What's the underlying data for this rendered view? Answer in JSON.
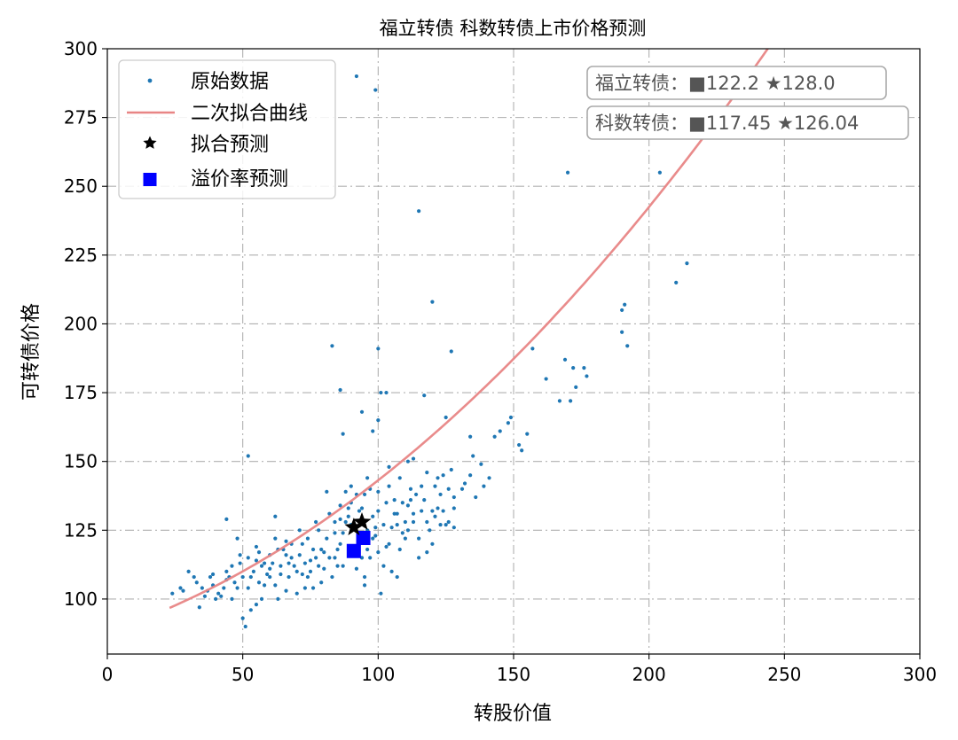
{
  "chart_data": {
    "type": "scatter",
    "title": "福立转债  科数转债上市价格预测",
    "xlabel": "转股价值",
    "ylabel": "可转债价格",
    "xlim": [
      0,
      300
    ],
    "ylim": [
      80,
      300
    ],
    "xticks": [
      0,
      50,
      100,
      150,
      200,
      250,
      300
    ],
    "yticks": [
      100,
      125,
      150,
      175,
      200,
      225,
      250,
      275,
      300
    ],
    "grid": true,
    "legend_position": "top-left",
    "legend": [
      {
        "label": "原始数据",
        "marker": "dot",
        "color": "#1f77b4"
      },
      {
        "label": "二次拟合曲线",
        "marker": "line",
        "color": "#e88585"
      },
      {
        "label": "拟合预测",
        "marker": "star",
        "color": "#000000"
      },
      {
        "label": "溢价率预测",
        "marker": "square",
        "color": "#0000ff"
      }
    ],
    "fit_curve": {
      "a": 0.00221,
      "b": 0.3305,
      "c": 88.0,
      "x_range": [
        23,
        278
      ],
      "color": "#e88585"
    },
    "fit_prediction": [
      [
        91.0,
        126.04
      ],
      [
        94.0,
        128.0
      ]
    ],
    "premium_prediction": [
      [
        91.0,
        117.45
      ],
      [
        94.5,
        122.2
      ]
    ],
    "annotations": [
      {
        "label": "福立转债：",
        "square_value": "■122.2",
        "star_value": "★128.0"
      },
      {
        "label": "科数转债：",
        "square_value": "■117.45",
        "star_value": "★126.04"
      }
    ],
    "raw_points": [
      [
        92,
        290
      ],
      [
        99,
        285
      ],
      [
        170,
        255
      ],
      [
        204,
        255
      ],
      [
        115,
        241
      ],
      [
        120,
        208
      ],
      [
        127,
        190
      ],
      [
        100,
        191
      ],
      [
        83,
        192
      ],
      [
        214,
        222
      ],
      [
        210,
        215
      ],
      [
        190,
        205
      ],
      [
        191,
        207
      ],
      [
        192,
        192
      ],
      [
        190,
        197
      ],
      [
        169,
        187
      ],
      [
        172,
        184
      ],
      [
        173,
        177
      ],
      [
        176,
        184
      ],
      [
        177,
        181
      ],
      [
        157,
        191
      ],
      [
        162,
        180
      ],
      [
        167,
        172
      ],
      [
        171,
        172
      ],
      [
        86,
        176
      ],
      [
        94,
        168
      ],
      [
        101,
        175
      ],
      [
        103,
        175
      ],
      [
        117,
        174
      ],
      [
        100,
        165
      ],
      [
        98,
        161
      ],
      [
        87,
        160
      ],
      [
        125,
        166
      ],
      [
        134,
        159
      ],
      [
        145,
        161
      ],
      [
        148,
        164
      ],
      [
        149,
        166
      ],
      [
        155,
        160
      ],
      [
        143,
        159
      ],
      [
        152,
        156
      ],
      [
        153,
        154
      ],
      [
        52,
        152
      ],
      [
        111,
        150
      ],
      [
        113,
        151
      ],
      [
        135,
        152
      ],
      [
        127,
        147
      ],
      [
        131,
        140
      ],
      [
        136,
        137
      ],
      [
        139,
        141
      ],
      [
        141,
        144
      ],
      [
        134,
        145
      ],
      [
        81,
        139
      ],
      [
        90,
        141
      ],
      [
        95,
        138
      ],
      [
        122,
        144
      ],
      [
        124,
        145
      ],
      [
        106,
        131
      ],
      [
        104,
        141
      ],
      [
        112,
        136
      ],
      [
        126,
        128
      ],
      [
        128,
        126
      ],
      [
        44,
        129
      ],
      [
        62,
        130
      ],
      [
        41,
        102
      ],
      [
        34,
        97
      ],
      [
        27,
        104
      ],
      [
        24,
        102
      ],
      [
        28,
        103
      ],
      [
        32,
        108
      ],
      [
        35,
        104
      ],
      [
        38,
        108
      ],
      [
        40,
        100
      ],
      [
        42,
        101
      ],
      [
        44,
        110
      ],
      [
        46,
        112
      ],
      [
        48,
        122
      ],
      [
        50,
        93
      ],
      [
        51,
        90
      ],
      [
        53,
        96
      ],
      [
        55,
        98
      ],
      [
        57,
        112
      ],
      [
        58,
        105
      ],
      [
        60,
        108
      ],
      [
        62,
        105
      ],
      [
        64,
        112
      ],
      [
        66,
        103
      ],
      [
        68,
        115
      ],
      [
        70,
        110
      ],
      [
        72,
        120
      ],
      [
        74,
        108
      ],
      [
        76,
        118
      ],
      [
        78,
        112
      ],
      [
        80,
        117
      ],
      [
        82,
        115
      ],
      [
        84,
        124
      ],
      [
        86,
        120
      ],
      [
        88,
        128
      ],
      [
        90,
        118
      ],
      [
        92,
        111
      ],
      [
        93,
        132
      ],
      [
        95,
        108
      ],
      [
        97,
        115
      ],
      [
        99,
        123
      ],
      [
        101,
        102
      ],
      [
        103,
        119
      ],
      [
        105,
        126
      ],
      [
        107,
        131
      ],
      [
        109,
        124
      ],
      [
        111,
        134
      ],
      [
        113,
        128
      ],
      [
        115,
        122
      ],
      [
        117,
        136
      ],
      [
        119,
        125
      ],
      [
        121,
        130
      ],
      [
        123,
        138
      ],
      [
        125,
        127
      ],
      [
        118,
        117
      ],
      [
        116,
        132
      ],
      [
        114,
        138
      ],
      [
        110,
        128
      ],
      [
        108,
        118
      ],
      [
        106,
        136
      ],
      [
        104,
        120
      ],
      [
        102,
        112
      ],
      [
        98,
        130
      ],
      [
        96,
        125
      ],
      [
        94,
        115
      ],
      [
        91,
        126
      ],
      [
        89,
        133
      ],
      [
        87,
        112
      ],
      [
        85,
        118
      ],
      [
        83,
        108
      ],
      [
        81,
        122
      ],
      [
        79,
        106
      ],
      [
        77,
        115
      ],
      [
        75,
        110
      ],
      [
        73,
        104
      ],
      [
        71,
        116
      ],
      [
        69,
        112
      ],
      [
        67,
        108
      ],
      [
        65,
        118
      ],
      [
        63,
        100
      ],
      [
        61,
        113
      ],
      [
        59,
        109
      ],
      [
        56,
        117
      ],
      [
        54,
        110
      ],
      [
        52,
        104
      ],
      [
        49,
        113
      ],
      [
        47,
        106
      ],
      [
        45,
        108
      ],
      [
        43,
        104
      ],
      [
        39,
        109
      ],
      [
        37,
        103
      ],
      [
        36,
        101
      ],
      [
        48,
        104
      ],
      [
        58,
        113
      ],
      [
        66,
        121
      ],
      [
        74,
        122
      ],
      [
        78,
        125
      ],
      [
        82,
        131
      ],
      [
        86,
        134
      ],
      [
        92,
        138
      ],
      [
        96,
        144
      ],
      [
        100,
        139
      ],
      [
        104,
        148
      ],
      [
        108,
        144
      ],
      [
        112,
        140
      ],
      [
        118,
        146
      ],
      [
        122,
        133
      ],
      [
        126,
        140
      ],
      [
        128,
        133
      ],
      [
        100,
        132
      ],
      [
        97,
        140
      ],
      [
        88,
        139
      ],
      [
        84,
        128
      ],
      [
        80,
        111
      ],
      [
        76,
        104
      ],
      [
        70,
        102
      ],
      [
        64,
        109
      ],
      [
        60,
        116
      ],
      [
        56,
        106
      ],
      [
        52,
        115
      ],
      [
        50,
        108
      ],
      [
        46,
        100
      ],
      [
        55,
        114
      ],
      [
        63,
        118
      ],
      [
        72,
        109
      ],
      [
        85,
        112
      ],
      [
        95,
        105
      ],
      [
        105,
        110
      ],
      [
        98,
        122
      ],
      [
        93,
        120
      ],
      [
        90,
        127
      ],
      [
        87,
        124
      ],
      [
        100,
        117
      ],
      [
        110,
        122
      ],
      [
        120,
        120
      ],
      [
        115,
        115
      ],
      [
        107,
        108
      ],
      [
        102,
        127
      ],
      [
        109,
        135
      ],
      [
        113,
        131
      ],
      [
        118,
        128
      ],
      [
        121,
        141
      ],
      [
        124,
        132
      ],
      [
        90,
        135
      ],
      [
        86,
        129
      ],
      [
        79,
        118
      ],
      [
        75,
        114
      ],
      [
        68,
        120
      ],
      [
        62,
        122
      ],
      [
        57,
        100
      ],
      [
        53,
        108
      ],
      [
        67,
        113
      ],
      [
        71,
        125
      ],
      [
        77,
        128
      ],
      [
        89,
        130
      ],
      [
        94,
        133
      ],
      [
        99,
        126
      ],
      [
        103,
        135
      ],
      [
        111,
        125
      ],
      [
        116,
        141
      ],
      [
        107,
        127
      ],
      [
        96,
        118
      ],
      [
        84,
        115
      ],
      [
        73,
        113
      ],
      [
        66,
        116
      ],
      [
        60,
        111
      ],
      [
        55,
        119
      ],
      [
        49,
        116
      ],
      [
        44,
        107
      ],
      [
        39,
        105
      ],
      [
        30,
        110
      ],
      [
        33,
        106
      ],
      [
        120,
        132
      ],
      [
        123,
        127
      ],
      [
        128,
        137
      ],
      [
        132,
        142
      ],
      [
        138,
        149
      ]
    ]
  }
}
